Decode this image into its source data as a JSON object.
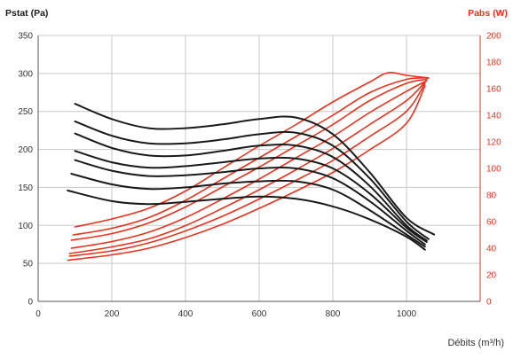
{
  "chart_data": {
    "type": "line",
    "title": "",
    "xlabel": "Débits (m³/h)",
    "ylabel_left": "Pstat (Pa)",
    "ylabel_right": "Pabs (W)",
    "xlim": [
      0,
      1200
    ],
    "ylim_left": [
      0,
      350
    ],
    "ylim_right": [
      0,
      200
    ],
    "xticks": [
      0,
      200,
      400,
      600,
      800,
      1000
    ],
    "yticks_left": [
      0,
      50,
      100,
      150,
      200,
      250,
      300,
      350
    ],
    "yticks_right": [
      0,
      20,
      40,
      60,
      80,
      100,
      120,
      140,
      160,
      180,
      200
    ],
    "grid": true,
    "colors": {
      "pressure": "#1a1a1a",
      "power": "#e8321e",
      "grid": "#c8c8c8"
    },
    "pressure_series": [
      {
        "axis": "left",
        "x": [
          100,
          200,
          300,
          400,
          500,
          600,
          700,
          800,
          900,
          1000,
          1075
        ],
        "y": [
          260,
          240,
          228,
          228,
          233,
          240,
          242,
          220,
          170,
          110,
          88
        ]
      },
      {
        "axis": "left",
        "x": [
          100,
          200,
          300,
          400,
          500,
          600,
          700,
          800,
          900,
          1000,
          1060
        ],
        "y": [
          237,
          218,
          208,
          208,
          213,
          220,
          222,
          205,
          162,
          105,
          82
        ]
      },
      {
        "axis": "left",
        "x": [
          100,
          200,
          300,
          400,
          500,
          600,
          700,
          800,
          900,
          1000,
          1055
        ],
        "y": [
          221,
          202,
          192,
          192,
          198,
          205,
          205,
          190,
          152,
          100,
          80
        ]
      },
      {
        "axis": "left",
        "x": [
          100,
          200,
          300,
          400,
          500,
          600,
          700,
          800,
          900,
          1000,
          1055
        ],
        "y": [
          198,
          183,
          176,
          178,
          183,
          188,
          188,
          175,
          142,
          97,
          78
        ]
      },
      {
        "axis": "left",
        "x": [
          100,
          200,
          300,
          400,
          500,
          600,
          700,
          800,
          900,
          1000,
          1050
        ],
        "y": [
          186,
          172,
          165,
          166,
          170,
          175,
          175,
          162,
          132,
          93,
          75
        ]
      },
      {
        "axis": "left",
        "x": [
          90,
          200,
          300,
          400,
          500,
          600,
          700,
          800,
          900,
          1000,
          1050
        ],
        "y": [
          168,
          154,
          148,
          150,
          155,
          158,
          158,
          147,
          120,
          88,
          72
        ]
      },
      {
        "axis": "left",
        "x": [
          80,
          200,
          300,
          400,
          500,
          600,
          700,
          800,
          900,
          1000,
          1050
        ],
        "y": [
          146,
          132,
          128,
          131,
          135,
          138,
          135,
          125,
          108,
          85,
          68
        ]
      }
    ],
    "power_series": [
      {
        "axis": "right",
        "x": [
          100,
          200,
          300,
          400,
          500,
          600,
          700,
          800,
          900,
          950,
          1000,
          1060
        ],
        "y": [
          56,
          62,
          70,
          83,
          100,
          117,
          133,
          150,
          165,
          172,
          170,
          168
        ]
      },
      {
        "axis": "right",
        "x": [
          95,
          200,
          300,
          400,
          500,
          600,
          700,
          800,
          900,
          1000,
          1060
        ],
        "y": [
          50,
          55,
          63,
          76,
          92,
          108,
          124,
          140,
          157,
          167,
          168
        ]
      },
      {
        "axis": "right",
        "x": [
          90,
          200,
          300,
          400,
          500,
          600,
          700,
          800,
          900,
          1000,
          1055
        ],
        "y": [
          46,
          51,
          59,
          71,
          86,
          101,
          117,
          133,
          151,
          164,
          167
        ]
      },
      {
        "axis": "right",
        "x": [
          90,
          200,
          300,
          400,
          500,
          600,
          700,
          800,
          900,
          1000,
          1055
        ],
        "y": [
          40,
          45,
          52,
          63,
          77,
          92,
          108,
          124,
          142,
          158,
          166
        ]
      },
      {
        "axis": "right",
        "x": [
          85,
          200,
          300,
          400,
          500,
          600,
          700,
          800,
          900,
          1000,
          1050
        ],
        "y": [
          36,
          41,
          47,
          57,
          70,
          84,
          99,
          115,
          133,
          151,
          165
        ]
      },
      {
        "axis": "right",
        "x": [
          85,
          200,
          300,
          400,
          500,
          600,
          700,
          800,
          900,
          1000,
          1050
        ],
        "y": [
          34,
          38,
          44,
          53,
          64,
          77,
          91,
          106,
          124,
          143,
          164
        ]
      },
      {
        "axis": "right",
        "x": [
          80,
          200,
          300,
          400,
          500,
          600,
          700,
          800,
          900,
          1000,
          1050
        ],
        "y": [
          31,
          35,
          40,
          48,
          58,
          70,
          83,
          97,
          114,
          134,
          162
        ]
      }
    ]
  }
}
